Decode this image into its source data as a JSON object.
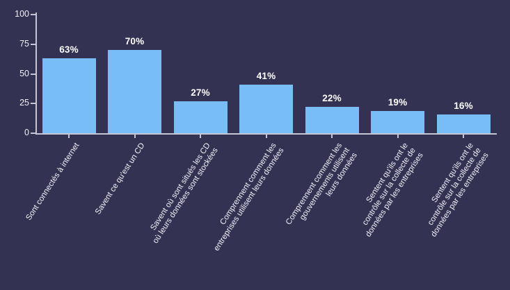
{
  "chart_data": {
    "type": "bar",
    "title": "",
    "xlabel": "",
    "ylabel": "",
    "ylim": [
      0,
      100
    ],
    "grid": false,
    "legend": null,
    "yticks": [
      0,
      25,
      50,
      75,
      100
    ],
    "ytick_labels": [
      "0",
      "25",
      "50",
      "75",
      "100"
    ],
    "values": [
      63,
      70,
      27,
      41,
      22,
      19,
      16
    ],
    "value_labels": [
      "63%",
      "70%",
      "27%",
      "41%",
      "22%",
      "19%",
      "16%"
    ],
    "categories": [
      [
        "Sont connectés à internet"
      ],
      [
        "Savent ce qu'est un CD"
      ],
      [
        "Savent où sont situés les CD",
        "où leurs données sont stockées"
      ],
      [
        "Comprennent comment les",
        "entreprises utilisent leurs données"
      ],
      [
        "Comprennent comment les",
        "gouvernements utilisent",
        "leurs données"
      ],
      [
        "Sentent qu'ils ont le",
        "contrôle sur la collecte de",
        "données par les entreprises"
      ],
      [
        "Sentent qu'ils ont le",
        "contrôle sur la collecte de",
        "données par les entreprises"
      ]
    ],
    "colors": {
      "background": "#343253",
      "bar": "#79BDF6",
      "axis": "#C6C5D4",
      "text": "#FFFFFF",
      "tick_text": "#F1F0F7"
    }
  }
}
